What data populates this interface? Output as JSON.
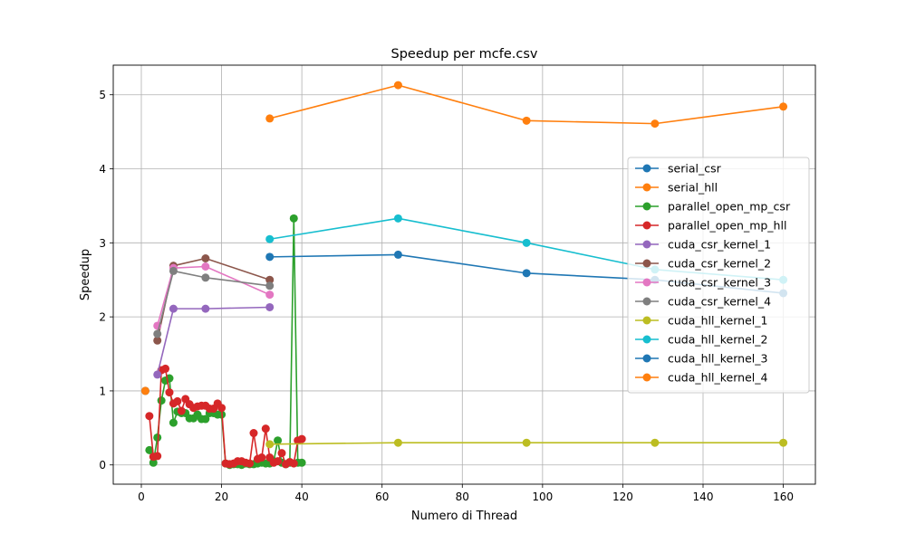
{
  "chart_data": {
    "type": "line",
    "title": "Speedup per mcfe.csv",
    "xlabel": "Numero di Thread",
    "ylabel": "Speedup",
    "xlim": [
      -7.0,
      168.0
    ],
    "ylim": [
      -0.26,
      5.4
    ],
    "x_ticks": [
      0,
      20,
      40,
      60,
      80,
      100,
      120,
      140,
      160
    ],
    "y_ticks": [
      0,
      1,
      2,
      3,
      4,
      5
    ],
    "grid": true,
    "legend_position": "center-right",
    "series": [
      {
        "name": "serial_csr",
        "color": "#1f77b4",
        "points": [
          [
            1,
            1.0
          ]
        ]
      },
      {
        "name": "serial_hll",
        "color": "#ff7f0e",
        "points": [
          [
            1,
            1.0
          ]
        ]
      },
      {
        "name": "parallel_open_mp_csr",
        "color": "#2ca02c",
        "points": [
          [
            2,
            0.2
          ],
          [
            3,
            0.03
          ],
          [
            4,
            0.37
          ],
          [
            5,
            0.87
          ],
          [
            6,
            1.14
          ],
          [
            7,
            1.17
          ],
          [
            8,
            0.57
          ],
          [
            9,
            0.72
          ],
          [
            10,
            0.7
          ],
          [
            11,
            0.7
          ],
          [
            12,
            0.63
          ],
          [
            13,
            0.63
          ],
          [
            14,
            0.68
          ],
          [
            15,
            0.62
          ],
          [
            16,
            0.62
          ],
          [
            17,
            0.7
          ],
          [
            18,
            0.7
          ],
          [
            19,
            0.68
          ],
          [
            20,
            0.68
          ],
          [
            21,
            0.02
          ],
          [
            22,
            0.0
          ],
          [
            23,
            0.01
          ],
          [
            24,
            0.01
          ],
          [
            25,
            0.0
          ],
          [
            26,
            0.02
          ],
          [
            27,
            0.01
          ],
          [
            28,
            0.01
          ],
          [
            29,
            0.02
          ],
          [
            30,
            0.03
          ],
          [
            31,
            0.02
          ],
          [
            32,
            0.02
          ],
          [
            33,
            0.05
          ],
          [
            34,
            0.33
          ],
          [
            35,
            0.03
          ],
          [
            36,
            0.01
          ],
          [
            37,
            0.03
          ],
          [
            38,
            3.33
          ],
          [
            39,
            0.03
          ],
          [
            40,
            0.03
          ]
        ]
      },
      {
        "name": "parallel_open_mp_hll",
        "color": "#d62728",
        "points": [
          [
            2,
            0.66
          ],
          [
            3,
            0.11
          ],
          [
            4,
            0.12
          ],
          [
            5,
            1.28
          ],
          [
            6,
            1.3
          ],
          [
            7,
            0.98
          ],
          [
            8,
            0.83
          ],
          [
            9,
            0.86
          ],
          [
            10,
            0.73
          ],
          [
            11,
            0.89
          ],
          [
            12,
            0.82
          ],
          [
            13,
            0.77
          ],
          [
            14,
            0.79
          ],
          [
            15,
            0.8
          ],
          [
            16,
            0.8
          ],
          [
            17,
            0.76
          ],
          [
            18,
            0.76
          ],
          [
            19,
            0.83
          ],
          [
            20,
            0.77
          ],
          [
            21,
            0.02
          ],
          [
            22,
            0.01
          ],
          [
            23,
            0.02
          ],
          [
            24,
            0.05
          ],
          [
            25,
            0.05
          ],
          [
            26,
            0.03
          ],
          [
            27,
            0.02
          ],
          [
            28,
            0.43
          ],
          [
            29,
            0.08
          ],
          [
            30,
            0.1
          ],
          [
            31,
            0.49
          ],
          [
            32,
            0.1
          ],
          [
            33,
            0.03
          ],
          [
            34,
            0.05
          ],
          [
            35,
            0.16
          ],
          [
            36,
            0.01
          ],
          [
            37,
            0.04
          ],
          [
            38,
            0.02
          ],
          [
            39,
            0.33
          ],
          [
            40,
            0.35
          ]
        ]
      },
      {
        "name": "cuda_csr_kernel_1",
        "color": "#9467bd",
        "points": [
          [
            4,
            1.22
          ],
          [
            8,
            2.11
          ],
          [
            16,
            2.11
          ],
          [
            32,
            2.13
          ]
        ]
      },
      {
        "name": "cuda_csr_kernel_2",
        "color": "#8c564b",
        "points": [
          [
            4,
            1.68
          ],
          [
            8,
            2.69
          ],
          [
            16,
            2.79
          ],
          [
            32,
            2.5
          ]
        ]
      },
      {
        "name": "cuda_csr_kernel_3",
        "color": "#e377c2",
        "points": [
          [
            4,
            1.88
          ],
          [
            8,
            2.66
          ],
          [
            16,
            2.68
          ],
          [
            32,
            2.3
          ]
        ]
      },
      {
        "name": "cuda_csr_kernel_4",
        "color": "#7f7f7f",
        "points": [
          [
            4,
            1.77
          ],
          [
            8,
            2.62
          ],
          [
            16,
            2.53
          ],
          [
            32,
            2.42
          ]
        ]
      },
      {
        "name": "cuda_hll_kernel_1",
        "color": "#bcbd22",
        "points": [
          [
            32,
            0.28
          ],
          [
            64,
            0.3
          ],
          [
            96,
            0.3
          ],
          [
            128,
            0.3
          ],
          [
            160,
            0.3
          ]
        ]
      },
      {
        "name": "cuda_hll_kernel_2",
        "color": "#17becf",
        "points": [
          [
            32,
            3.05
          ],
          [
            64,
            3.33
          ],
          [
            96,
            3.0
          ],
          [
            128,
            2.64
          ],
          [
            160,
            2.5
          ]
        ]
      },
      {
        "name": "cuda_hll_kernel_3",
        "color": "#1f77b4",
        "points": [
          [
            32,
            2.81
          ],
          [
            64,
            2.84
          ],
          [
            96,
            2.59
          ],
          [
            128,
            2.5
          ],
          [
            160,
            2.32
          ]
        ]
      },
      {
        "name": "cuda_hll_kernel_4",
        "color": "#ff7f0e",
        "points": [
          [
            32,
            4.68
          ],
          [
            64,
            5.13
          ],
          [
            96,
            4.65
          ],
          [
            128,
            4.61
          ],
          [
            160,
            4.84
          ]
        ]
      }
    ]
  }
}
